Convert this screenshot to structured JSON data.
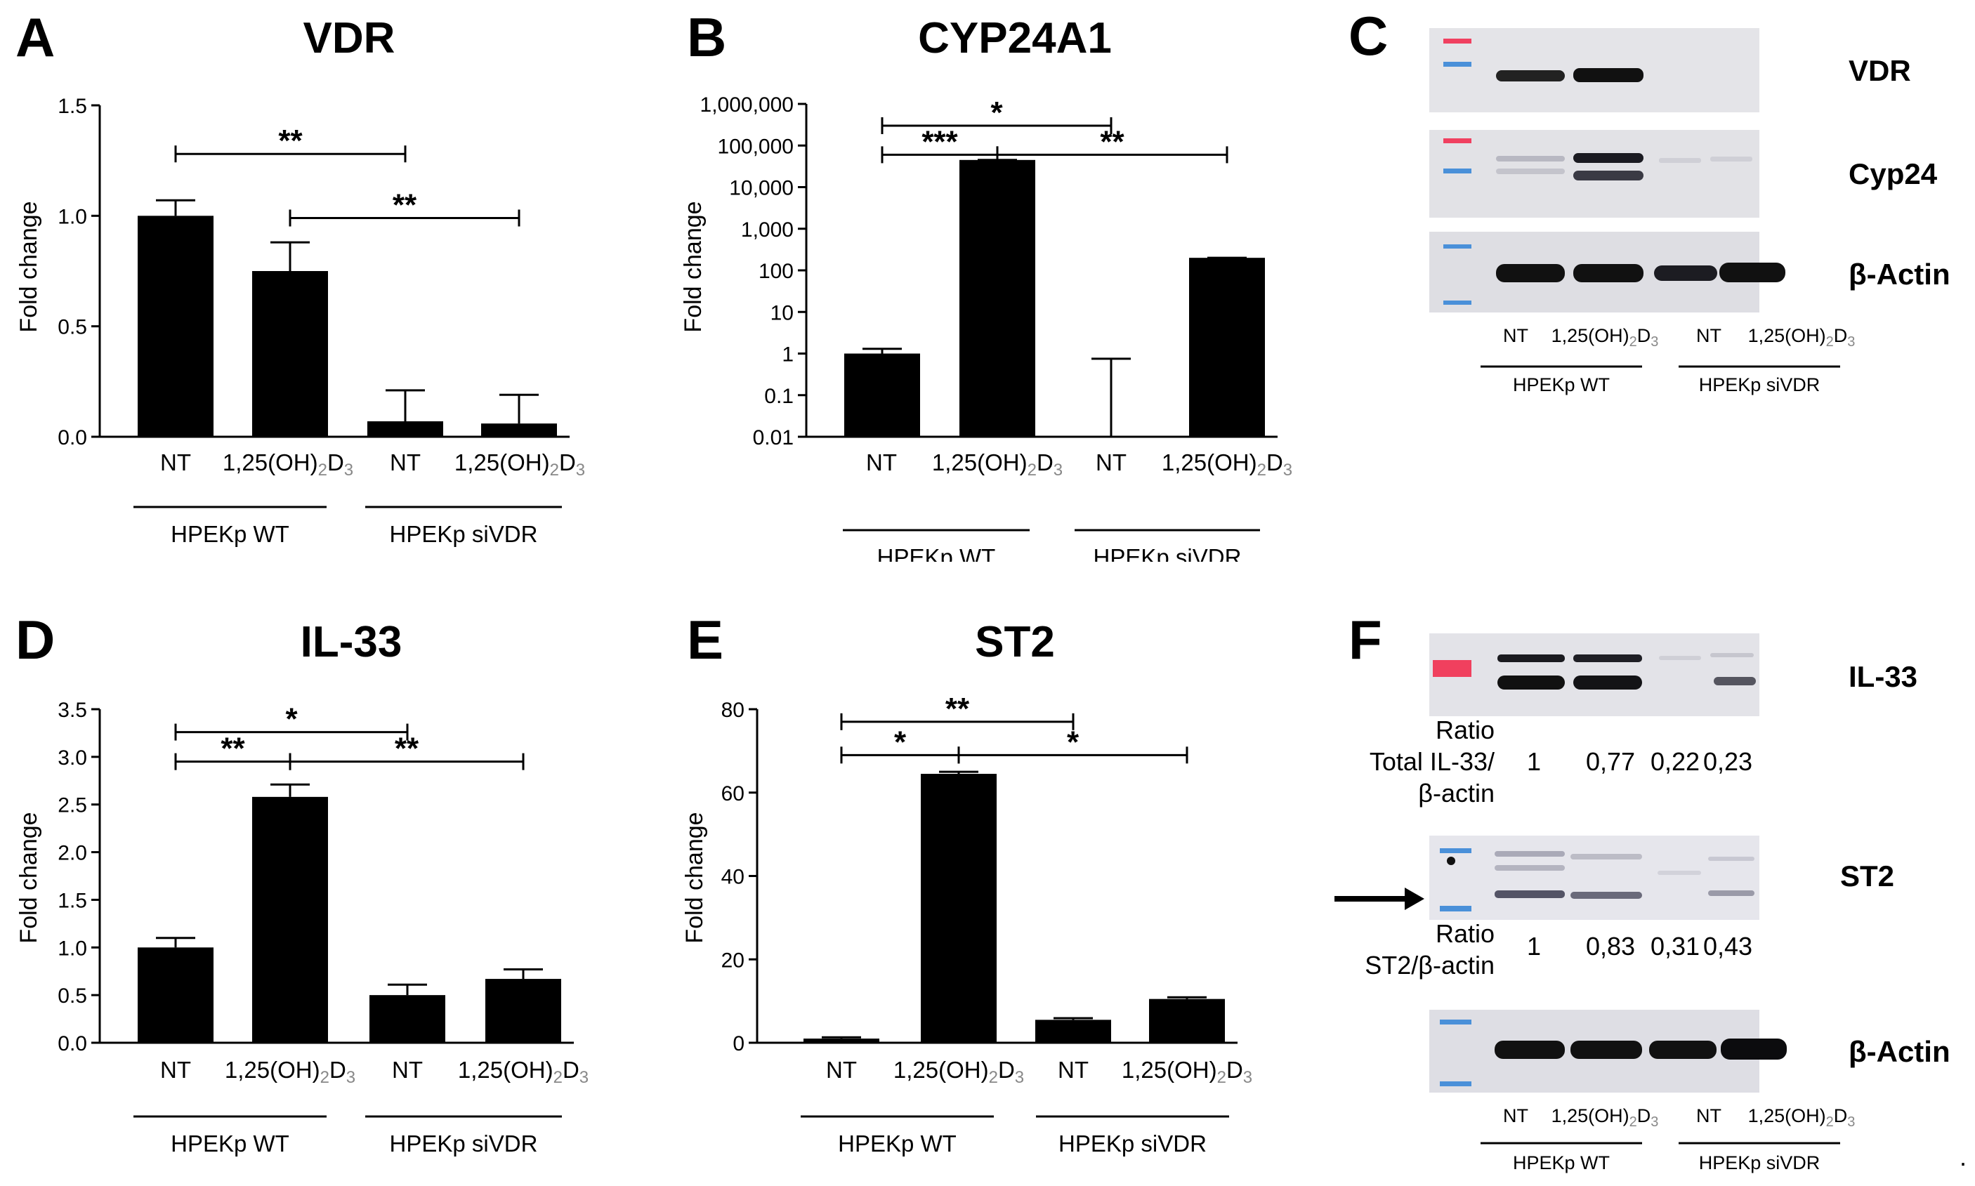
{
  "figure": {
    "trailing_mark": "."
  },
  "x_labels": {
    "nt": "NT",
    "treat_main": "1,25(OH)",
    "treat_sub2": "2",
    "treat_d": "D",
    "treat_sub3": "3",
    "group_wt": "HPEKp WT",
    "group_si": "HPEKp siVDR"
  },
  "chart_data": [
    {
      "panel": "A",
      "type": "bar",
      "title": "VDR",
      "ylabel": "Fold change",
      "scale": "linear",
      "ylim": [
        0,
        1.5
      ],
      "yticks": [
        0,
        0.5,
        1.0,
        1.5
      ],
      "ytick_labels": [
        "0.0",
        "0.5",
        "1.0",
        "1.5"
      ],
      "categories": [
        "NT",
        "1,25(OH)2D3",
        "NT",
        "1,25(OH)2D3"
      ],
      "groups": [
        "HPEKp WT",
        "HPEKp siVDR"
      ],
      "values": [
        1.0,
        0.75,
        0.07,
        0.06
      ],
      "errors": [
        0.07,
        0.13,
        0.14,
        0.13
      ],
      "significance": [
        {
          "from": 0,
          "to": 2,
          "label": "**",
          "y": 1.28,
          "tier": 0
        },
        {
          "from": 1,
          "to": 3,
          "label": "**",
          "y": 0.99,
          "tier": 0
        }
      ]
    },
    {
      "panel": "B",
      "type": "bar",
      "title": "CYP24A1",
      "ylabel": "Fold change",
      "scale": "log",
      "ylim": [
        0.01,
        1000000
      ],
      "yticks": [
        0.01,
        0.1,
        1,
        10,
        100,
        1000,
        10000,
        100000,
        1000000
      ],
      "ytick_labels": [
        "0.01",
        "0.1",
        "1",
        "10",
        "100",
        "1,000",
        "10,000",
        "100,000",
        "1,000,000"
      ],
      "categories": [
        "NT",
        "1,25(OH)2D3",
        "NT",
        "1,25(OH)2D3"
      ],
      "groups": [
        "HPEKp WT",
        "HPEKp siVDR"
      ],
      "values": [
        1.0,
        45000,
        0.01,
        200
      ],
      "errors_top": [
        1.3,
        45000,
        0.75,
        200
      ],
      "significance": [
        {
          "from": 0,
          "to": 2,
          "label": "*",
          "y": 300000,
          "tier": 0
        },
        {
          "from": 0,
          "to": 1,
          "label": "***",
          "y": 60000,
          "tier": 1
        },
        {
          "from": 1,
          "to": 3,
          "label": "**",
          "y": 60000,
          "tier": 1
        }
      ]
    },
    {
      "panel": "D",
      "type": "bar",
      "title": "IL-33",
      "ylabel": "Fold change",
      "scale": "linear",
      "ylim": [
        0,
        3.5
      ],
      "yticks": [
        0,
        0.5,
        1.0,
        1.5,
        2.0,
        2.5,
        3.0,
        3.5
      ],
      "ytick_labels": [
        "0.0",
        "0.5",
        "1.0",
        "1.5",
        "2.0",
        "2.5",
        "3.0",
        "3.5"
      ],
      "categories": [
        "NT",
        "1,25(OH)2D3",
        "NT",
        "1,25(OH)2D3"
      ],
      "groups": [
        "HPEKp WT",
        "HPEKp siVDR"
      ],
      "values": [
        1.0,
        2.58,
        0.5,
        0.67
      ],
      "errors": [
        0.1,
        0.13,
        0.11,
        0.1
      ],
      "significance": [
        {
          "from": 0,
          "to": 2,
          "label": "*",
          "y": 3.26,
          "tier": 0
        },
        {
          "from": 0,
          "to": 1,
          "label": "**",
          "y": 2.95,
          "tier": 1
        },
        {
          "from": 1,
          "to": 3,
          "label": "**",
          "y": 2.95,
          "tier": 1
        }
      ]
    },
    {
      "panel": "E",
      "type": "bar",
      "title": "ST2",
      "ylabel": "Fold change",
      "scale": "linear",
      "ylim": [
        0,
        80
      ],
      "yticks": [
        0,
        20,
        40,
        60,
        80
      ],
      "ytick_labels": [
        "0",
        "20",
        "40",
        "60",
        "80"
      ],
      "categories": [
        "NT",
        "1,25(OH)2D3",
        "NT",
        "1,25(OH)2D3"
      ],
      "groups": [
        "HPEKp WT",
        "HPEKp siVDR"
      ],
      "values": [
        1.0,
        64.5,
        5.5,
        10.5
      ],
      "errors": [
        0.3,
        0.5,
        0.4,
        0.4
      ],
      "significance": [
        {
          "from": 0,
          "to": 2,
          "label": "**",
          "y": 77,
          "tier": 0
        },
        {
          "from": 0,
          "to": 1,
          "label": "*",
          "y": 69,
          "tier": 1
        },
        {
          "from": 1,
          "to": 3,
          "label": "*",
          "y": 69,
          "tier": 1
        }
      ]
    }
  ],
  "blots": {
    "C": {
      "letter": "C",
      "bands": [
        "VDR",
        "Cyp24",
        "β-Actin"
      ],
      "lanes": [
        "NT",
        "1,25(OH)2D3",
        "NT",
        "1,25(OH)2D3"
      ],
      "groups": [
        "HPEKp WT",
        "HPEKp siVDR"
      ]
    },
    "F": {
      "letter": "F",
      "bands": [
        "IL-33",
        "ST2",
        "β-Actin"
      ],
      "lanes": [
        "NT",
        "1,25(OH)2D3",
        "NT",
        "1,25(OH)2D3"
      ],
      "groups": [
        "HPEKp WT",
        "HPEKp siVDR"
      ],
      "ratio_il33": {
        "label_lines": [
          "Ratio",
          "Total IL-33/",
          "β-actin"
        ],
        "values": [
          "1",
          "0,77",
          "0,22",
          "0,23"
        ]
      },
      "ratio_st2": {
        "label_lines": [
          "Ratio",
          "ST2/β-actin"
        ],
        "values": [
          "1",
          "0,83",
          "0,31",
          "0,43"
        ]
      }
    }
  }
}
